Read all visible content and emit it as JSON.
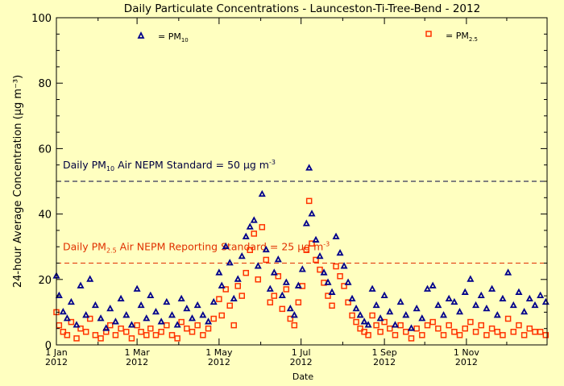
{
  "chart_data": {
    "type": "scatter",
    "title": "Daily Particulate Concentrations - Launceston-Ti-Tree-Bend -  2012",
    "xlabel": "Date",
    "ylabel": "24-hour Average Concentration (µg m⁻³)",
    "ylim": [
      0,
      100
    ],
    "xlim": [
      "2012-01-01",
      "2012-12-31"
    ],
    "y_ticks": [
      0,
      20,
      40,
      60,
      80,
      100
    ],
    "x_ticks": [
      {
        "date": "2012-01-01",
        "line1": "1 Jan",
        "line2": "2012"
      },
      {
        "date": "2012-03-01",
        "line1": "1 Mar",
        "line2": "2012"
      },
      {
        "date": "2012-05-01",
        "line1": "1 May",
        "line2": "2012"
      },
      {
        "date": "2012-07-01",
        "line1": "1 Jul",
        "line2": "2012"
      },
      {
        "date": "2012-09-01",
        "line1": "1 Sep",
        "line2": "2012"
      },
      {
        "date": "2012-11-01",
        "line1": "1 Nov",
        "line2": "2012"
      }
    ],
    "grid": false,
    "legend": {
      "placement": "top",
      "pm10_prefix": "= PM",
      "pm10_sub": "10",
      "pm25_prefix": "= PM",
      "pm25_sub": "2.5"
    },
    "reference_lines": [
      {
        "value": 50,
        "color": "#000040",
        "label_pre": "Daily PM",
        "label_sub": "10",
        "label_post": " Air NEPM Standard = 50 µg m",
        "label_sup": "-3"
      },
      {
        "value": 25,
        "color": "#e03000",
        "label_pre": "Daily PM",
        "label_sub": "2.5",
        "label_post": " Air NEPM Reporting Standard = 25 µg m",
        "label_sup": "-3"
      }
    ],
    "colors": {
      "pm10": "#00008b",
      "pm25": "#ff3300",
      "axis": "#000000",
      "background": "#ffffc0"
    },
    "series": [
      {
        "name": "PM10",
        "marker": "triangle",
        "x": [
          "2012-01-01",
          "2012-01-03",
          "2012-01-06",
          "2012-01-09",
          "2012-01-12",
          "2012-01-16",
          "2012-01-19",
          "2012-01-23",
          "2012-01-26",
          "2012-01-30",
          "2012-02-03",
          "2012-02-07",
          "2012-02-10",
          "2012-02-14",
          "2012-02-18",
          "2012-02-22",
          "2012-02-26",
          "2012-03-01",
          "2012-03-04",
          "2012-03-08",
          "2012-03-11",
          "2012-03-15",
          "2012-03-19",
          "2012-03-23",
          "2012-03-27",
          "2012-03-31",
          "2012-04-03",
          "2012-04-07",
          "2012-04-11",
          "2012-04-15",
          "2012-04-19",
          "2012-04-23",
          "2012-04-27",
          "2012-05-01",
          "2012-05-03",
          "2012-05-06",
          "2012-05-09",
          "2012-05-12",
          "2012-05-15",
          "2012-05-18",
          "2012-05-21",
          "2012-05-24",
          "2012-05-27",
          "2012-05-30",
          "2012-06-02",
          "2012-06-05",
          "2012-06-08",
          "2012-06-11",
          "2012-06-14",
          "2012-06-17",
          "2012-06-20",
          "2012-06-23",
          "2012-06-26",
          "2012-06-29",
          "2012-07-02",
          "2012-07-05",
          "2012-07-07",
          "2012-07-09",
          "2012-07-12",
          "2012-07-15",
          "2012-07-18",
          "2012-07-21",
          "2012-07-24",
          "2012-07-27",
          "2012-07-30",
          "2012-08-02",
          "2012-08-05",
          "2012-08-08",
          "2012-08-11",
          "2012-08-14",
          "2012-08-17",
          "2012-08-20",
          "2012-08-23",
          "2012-08-26",
          "2012-08-29",
          "2012-09-01",
          "2012-09-05",
          "2012-09-09",
          "2012-09-13",
          "2012-09-17",
          "2012-09-21",
          "2012-09-25",
          "2012-09-29",
          "2012-10-03",
          "2012-10-07",
          "2012-10-11",
          "2012-10-15",
          "2012-10-19",
          "2012-10-23",
          "2012-10-27",
          "2012-10-31",
          "2012-11-04",
          "2012-11-08",
          "2012-11-12",
          "2012-11-16",
          "2012-11-20",
          "2012-11-24",
          "2012-11-28",
          "2012-12-02",
          "2012-12-06",
          "2012-12-10",
          "2012-12-14",
          "2012-12-18",
          "2012-12-22",
          "2012-12-26",
          "2012-12-30"
        ],
        "y": [
          21,
          15,
          10,
          8,
          13,
          6,
          18,
          9,
          20,
          12,
          8,
          5,
          11,
          7,
          14,
          9,
          6,
          17,
          12,
          8,
          15,
          10,
          7,
          13,
          9,
          6,
          14,
          11,
          8,
          12,
          9,
          7,
          13,
          22,
          18,
          30,
          25,
          14,
          20,
          27,
          33,
          36,
          38,
          24,
          46,
          29,
          17,
          22,
          26,
          15,
          19,
          11,
          9,
          18,
          23,
          37,
          54,
          40,
          32,
          27,
          22,
          19,
          16,
          33,
          28,
          24,
          19,
          14,
          11,
          9,
          7,
          6,
          17,
          12,
          8,
          15,
          10,
          6,
          13,
          9,
          5,
          11,
          8,
          17,
          18,
          12,
          9,
          14,
          13,
          10,
          16,
          20,
          12,
          15,
          11,
          17,
          9,
          14,
          22,
          12,
          16,
          10,
          14,
          12,
          15,
          13
        ]
      },
      {
        "name": "PM2.5",
        "marker": "square",
        "x": [
          "2012-01-01",
          "2012-01-03",
          "2012-01-06",
          "2012-01-09",
          "2012-01-12",
          "2012-01-16",
          "2012-01-19",
          "2012-01-23",
          "2012-01-26",
          "2012-01-30",
          "2012-02-03",
          "2012-02-07",
          "2012-02-10",
          "2012-02-14",
          "2012-02-18",
          "2012-02-22",
          "2012-02-26",
          "2012-03-01",
          "2012-03-04",
          "2012-03-08",
          "2012-03-11",
          "2012-03-15",
          "2012-03-19",
          "2012-03-23",
          "2012-03-27",
          "2012-03-31",
          "2012-04-03",
          "2012-04-07",
          "2012-04-11",
          "2012-04-15",
          "2012-04-19",
          "2012-04-23",
          "2012-04-27",
          "2012-05-01",
          "2012-05-03",
          "2012-05-06",
          "2012-05-09",
          "2012-05-12",
          "2012-05-15",
          "2012-05-18",
          "2012-05-21",
          "2012-05-24",
          "2012-05-27",
          "2012-05-30",
          "2012-06-02",
          "2012-06-05",
          "2012-06-08",
          "2012-06-11",
          "2012-06-14",
          "2012-06-17",
          "2012-06-20",
          "2012-06-23",
          "2012-06-26",
          "2012-06-29",
          "2012-07-02",
          "2012-07-05",
          "2012-07-07",
          "2012-07-09",
          "2012-07-12",
          "2012-07-15",
          "2012-07-18",
          "2012-07-21",
          "2012-07-24",
          "2012-07-27",
          "2012-07-30",
          "2012-08-02",
          "2012-08-05",
          "2012-08-08",
          "2012-08-11",
          "2012-08-14",
          "2012-08-17",
          "2012-08-20",
          "2012-08-23",
          "2012-08-26",
          "2012-08-29",
          "2012-09-01",
          "2012-09-05",
          "2012-09-09",
          "2012-09-13",
          "2012-09-17",
          "2012-09-21",
          "2012-09-25",
          "2012-09-29",
          "2012-10-03",
          "2012-10-07",
          "2012-10-11",
          "2012-10-15",
          "2012-10-19",
          "2012-10-23",
          "2012-10-27",
          "2012-10-31",
          "2012-11-04",
          "2012-11-08",
          "2012-11-12",
          "2012-11-16",
          "2012-11-20",
          "2012-11-24",
          "2012-11-28",
          "2012-12-02",
          "2012-12-06",
          "2012-12-10",
          "2012-12-14",
          "2012-12-18",
          "2012-12-22",
          "2012-12-26",
          "2012-12-30"
        ],
        "y": [
          10,
          6,
          4,
          3,
          7,
          2,
          5,
          4,
          8,
          3,
          2,
          4,
          6,
          3,
          5,
          4,
          2,
          6,
          4,
          3,
          5,
          3,
          4,
          6,
          3,
          2,
          7,
          5,
          4,
          6,
          3,
          5,
          8,
          14,
          9,
          17,
          12,
          6,
          18,
          15,
          22,
          29,
          34,
          20,
          36,
          26,
          13,
          15,
          21,
          11,
          17,
          8,
          6,
          13,
          18,
          29,
          44,
          31,
          26,
          23,
          19,
          15,
          12,
          24,
          21,
          18,
          13,
          9,
          7,
          5,
          4,
          3,
          9,
          6,
          4,
          7,
          5,
          3,
          6,
          4,
          2,
          5,
          3,
          6,
          7,
          5,
          3,
          6,
          4,
          3,
          5,
          7,
          4,
          6,
          3,
          5,
          4,
          3,
          8,
          4,
          6,
          3,
          5,
          4,
          4,
          3
        ]
      }
    ]
  }
}
